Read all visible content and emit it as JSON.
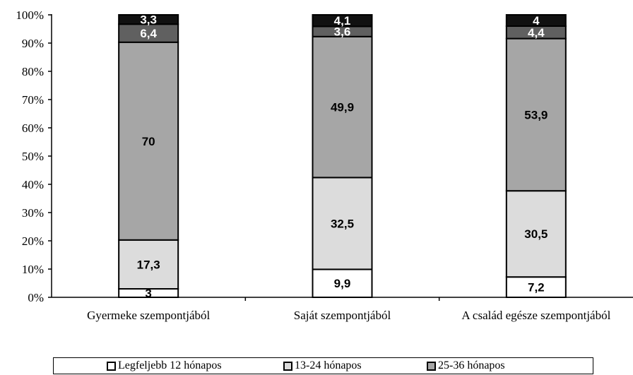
{
  "chart_data": {
    "type": "bar",
    "stacked": true,
    "percent": true,
    "categories": [
      "Gyermeke szempontjából",
      "Saját szempontjából",
      "A család egésze szempontjából"
    ],
    "series": [
      {
        "name": "Legfeljebb 12 hónapos",
        "values": [
          3,
          9.9,
          7.2
        ],
        "color": "#ffffff",
        "label_color": "#000000"
      },
      {
        "name": "13-24 hónapos",
        "values": [
          17.3,
          32.5,
          30.5
        ],
        "color": "#dcdcdc",
        "label_color": "#000000"
      },
      {
        "name": "25-36 hónapos",
        "values": [
          70,
          49.9,
          53.9
        ],
        "color": "#a6a6a6",
        "label_color": "#000000"
      },
      {
        "name": "",
        "values": [
          6.4,
          3.6,
          4.4
        ],
        "color": "#606060",
        "label_color": "#ffffff"
      },
      {
        "name": "",
        "values": [
          3.3,
          4.1,
          4
        ],
        "color": "#111111",
        "label_color": "#ffffff"
      }
    ],
    "value_labels": [
      [
        "3",
        "9,9",
        "7,2"
      ],
      [
        "17,3",
        "32,5",
        "30,5"
      ],
      [
        "70",
        "49,9",
        "53,9"
      ],
      [
        "6,4",
        "3,6",
        "4,4"
      ],
      [
        "3,3",
        "4,1",
        "4"
      ]
    ],
    "y_ticks": [
      "0%",
      "10%",
      "20%",
      "30%",
      "40%",
      "50%",
      "60%",
      "70%",
      "80%",
      "90%",
      "100%"
    ],
    "ylim": [
      0,
      100
    ],
    "grid": false,
    "legend_position": "bottom"
  }
}
